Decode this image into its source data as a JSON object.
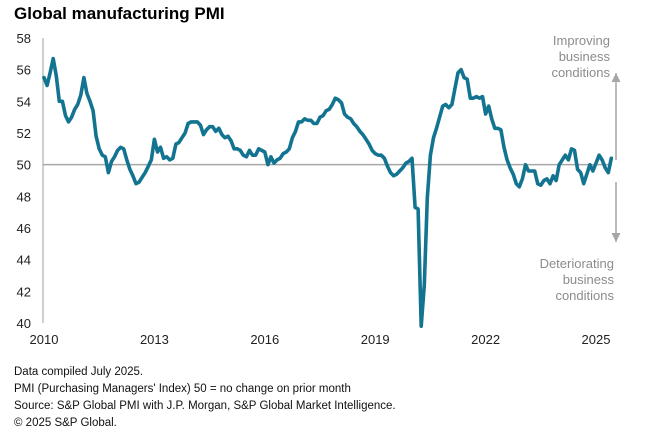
{
  "chart_data": {
    "type": "line",
    "title": "Global manufacturing PMI",
    "xlabel": "",
    "ylabel": "",
    "ylim": [
      40,
      58
    ],
    "yticks": [
      40,
      42,
      44,
      46,
      48,
      50,
      52,
      54,
      56,
      58
    ],
    "xticks": [
      "2010",
      "2013",
      "2016",
      "2019",
      "2022",
      "2025"
    ],
    "x_start": "2010-01",
    "x_frequency": "monthly",
    "reference_line": 50,
    "grid": false,
    "color": "#127490",
    "series": [
      {
        "name": "Global manufacturing PMI",
        "values": [
          55.5,
          55.0,
          55.8,
          56.7,
          55.6,
          54.0,
          54.0,
          53.1,
          52.7,
          53.0,
          53.5,
          53.8,
          54.4,
          55.5,
          54.5,
          54.0,
          53.4,
          51.8,
          51.0,
          50.6,
          50.5,
          49.5,
          50.2,
          50.5,
          50.9,
          51.1,
          51.0,
          50.3,
          49.7,
          49.3,
          48.8,
          48.9,
          49.2,
          49.5,
          49.9,
          50.3,
          51.6,
          50.8,
          51.1,
          50.4,
          50.5,
          50.3,
          50.4,
          51.3,
          51.4,
          51.7,
          52.0,
          52.6,
          52.7,
          52.7,
          52.7,
          52.5,
          51.9,
          52.2,
          52.4,
          52.4,
          52.1,
          52.3,
          51.9,
          51.7,
          51.8,
          51.5,
          51.0,
          51.0,
          50.9,
          50.6,
          50.5,
          50.9,
          50.6,
          50.6,
          51.0,
          50.9,
          50.8,
          50.0,
          50.5,
          50.1,
          50.3,
          50.4,
          50.7,
          50.8,
          51.0,
          51.7,
          52.1,
          52.7,
          52.7,
          52.9,
          52.8,
          52.8,
          52.6,
          52.6,
          53.0,
          53.1,
          53.4,
          53.5,
          53.8,
          54.2,
          54.1,
          53.9,
          53.2,
          53.0,
          52.9,
          52.6,
          52.4,
          52.1,
          51.9,
          51.6,
          51.3,
          50.9,
          50.7,
          50.6,
          50.6,
          50.4,
          49.9,
          49.5,
          49.3,
          49.4,
          49.6,
          49.8,
          50.1,
          50.2,
          50.4,
          47.3,
          47.2,
          39.8,
          42.4,
          47.9,
          50.6,
          51.7,
          52.3,
          53.0,
          53.7,
          53.8,
          53.6,
          53.8,
          54.8,
          55.8,
          56.0,
          55.5,
          55.4,
          54.2,
          54.2,
          54.3,
          54.2,
          54.3,
          53.2,
          53.7,
          52.9,
          52.3,
          52.3,
          52.2,
          51.1,
          50.3,
          49.8,
          49.4,
          48.8,
          48.6,
          49.1,
          50.0,
          49.6,
          49.6,
          49.6,
          48.8,
          48.7,
          49.0,
          49.1,
          48.8,
          49.3,
          49.0,
          50.0,
          50.3,
          50.6,
          50.3,
          51.0,
          50.9,
          49.7,
          49.5,
          48.8,
          49.4,
          50.0,
          49.6,
          50.1,
          50.6,
          50.3,
          49.8,
          49.5,
          50.4
        ]
      }
    ],
    "annotations": [
      {
        "text_lines": [
          "Improving",
          "business",
          "conditions"
        ],
        "arrow": "up"
      },
      {
        "text_lines": [
          "Deteriorating",
          "business",
          "conditions"
        ],
        "arrow": "down"
      }
    ]
  },
  "footer": {
    "line1": "Data compiled July 2025.",
    "line2": "PMI (Purchasing Managers' Index) 50 = no change on prior month",
    "line3": "Source: S&P Global  PMI with J.P. Morgan, S&P Global Market Intelligence.",
    "line4": "© 2025 S&P Global."
  }
}
